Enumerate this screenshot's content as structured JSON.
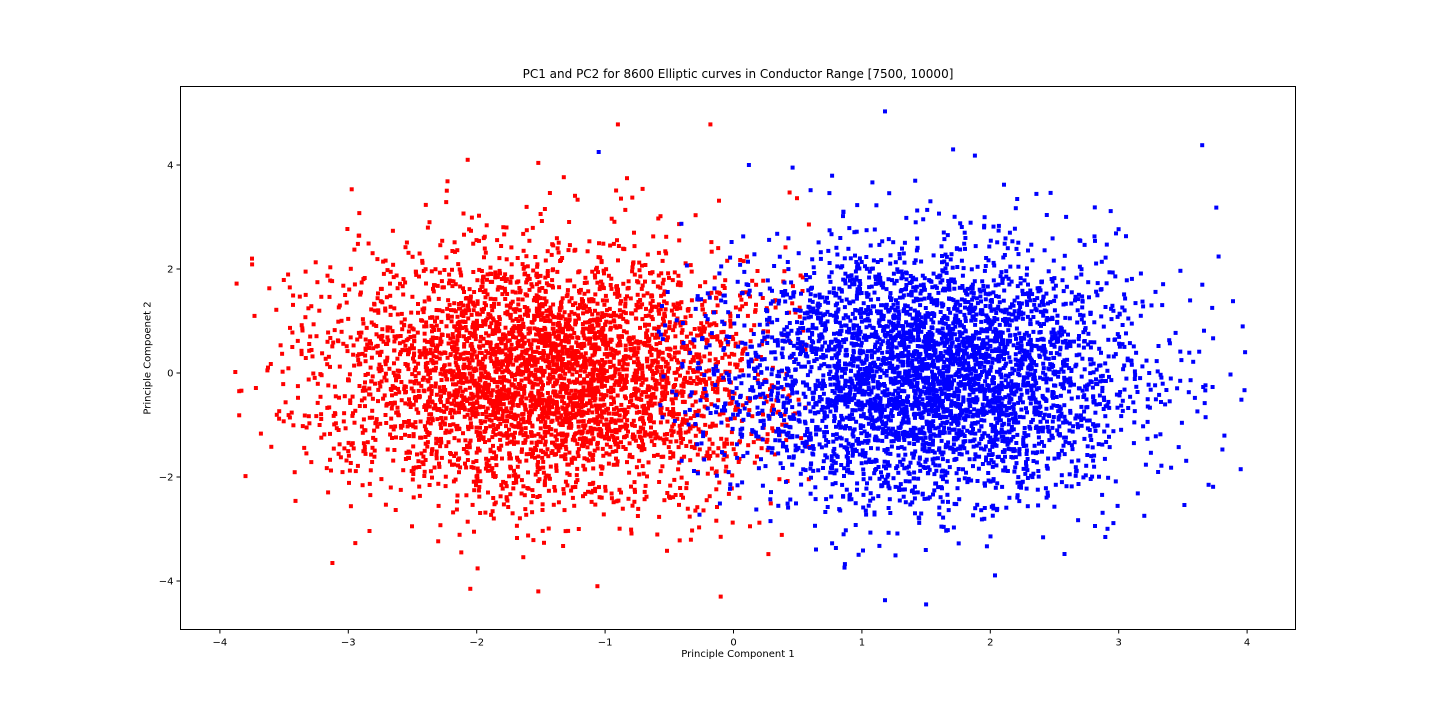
{
  "chart_data": {
    "type": "scatter",
    "title": "PC1 and PC2 for 8600 Elliptic curves in Conductor Range [7500, 10000]",
    "xlabel": "Principle Component 1",
    "ylabel": "Principle Compoenet 2",
    "xlim": [
      -4.3,
      4.4
    ],
    "ylim": [
      -4.9,
      5.5
    ],
    "xticks": [
      -4,
      -3,
      -2,
      -1,
      0,
      1,
      2,
      3,
      4
    ],
    "xtick_labels": [
      "−4",
      "−3",
      "−2",
      "−1",
      "0",
      "1",
      "2",
      "3",
      "4"
    ],
    "yticks": [
      -4,
      -2,
      0,
      2,
      4
    ],
    "ytick_labels": [
      "−4",
      "−2",
      "0",
      "2",
      "4"
    ],
    "grid": false,
    "legend": null,
    "total_points": 8600,
    "series": [
      {
        "name": "cluster-red",
        "color": "#ff0000",
        "count": 4300,
        "center": [
          -1.45,
          -0.05
        ],
        "std": [
          0.85,
          1.2
        ],
        "x_range": [
          -3.9,
          0.6
        ],
        "outliers": [
          [
            -3.88,
            0.02
          ],
          [
            -3.85,
            -0.35
          ],
          [
            -3.75,
            2.2
          ],
          [
            -3.87,
            1.72
          ],
          [
            -3.6,
            -1.42
          ],
          [
            -0.9,
            4.78
          ],
          [
            -0.18,
            4.78
          ],
          [
            -2.07,
            4.1
          ],
          [
            -1.52,
            4.04
          ],
          [
            -1.52,
            -4.2
          ],
          [
            -2.05,
            -4.15
          ],
          [
            -1.06,
            -4.1
          ],
          [
            -0.1,
            -4.3
          ]
        ]
      },
      {
        "name": "cluster-blue",
        "color": "#0000ff",
        "count": 4300,
        "center": [
          1.5,
          -0.05
        ],
        "std": [
          0.8,
          1.2
        ],
        "x_range": [
          -0.6,
          4.0
        ],
        "outliers": [
          [
            1.18,
            5.03
          ],
          [
            3.65,
            4.38
          ],
          [
            3.76,
            3.18
          ],
          [
            3.98,
            -0.33
          ],
          [
            3.95,
            -1.85
          ],
          [
            3.7,
            -2.15
          ],
          [
            1.18,
            -4.37
          ],
          [
            1.5,
            -4.45
          ],
          [
            1.71,
            4.3
          ],
          [
            1.88,
            4.18
          ],
          [
            -1.05,
            4.25
          ],
          [
            0.12,
            4.0
          ],
          [
            0.46,
            3.95
          ]
        ]
      }
    ]
  },
  "colors": {
    "background": "#ffffff",
    "axes": "#000000"
  }
}
